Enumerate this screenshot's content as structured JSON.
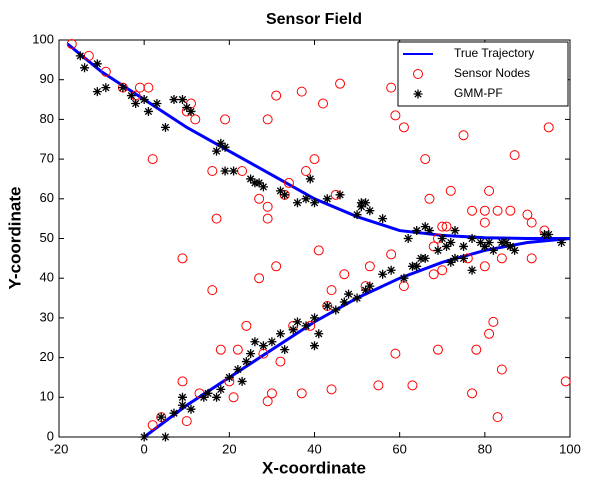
{
  "chart_data": {
    "type": "scatter",
    "title": "Sensor Field",
    "x_label": "X-coordinate",
    "y_label": "Y-coordinate",
    "xlim": [
      -20,
      100
    ],
    "ylim": [
      0,
      100
    ],
    "xticks": [
      -20,
      0,
      20,
      40,
      60,
      80,
      100
    ],
    "yticks": [
      0,
      10,
      20,
      30,
      40,
      50,
      60,
      70,
      80,
      90,
      100
    ],
    "legend": "northeast",
    "series": [
      {
        "name": "True Trajectory",
        "type": "line",
        "color": "#0000ff",
        "x": [
          -18,
          -10,
          0,
          10,
          20,
          30,
          40,
          50,
          60,
          70,
          80,
          90,
          100,
          null,
          0,
          10,
          20,
          30,
          40,
          50,
          60,
          70,
          80,
          90,
          100
        ],
        "values": [
          99,
          92,
          85,
          78,
          72,
          66,
          60,
          55.5,
          52,
          50.8,
          50.2,
          50,
          50,
          null,
          0,
          8,
          15,
          22,
          29,
          35,
          40,
          44,
          47,
          49,
          50
        ]
      },
      {
        "name": "Sensor Nodes",
        "type": "circle",
        "color": "#ff0000",
        "x": [
          -17,
          -13,
          -9,
          -5,
          -2,
          -1,
          1,
          2,
          10,
          11,
          12,
          19,
          29,
          31,
          37,
          42,
          46,
          58,
          59,
          61,
          66,
          75,
          95,
          87,
          80,
          83,
          81,
          77,
          72,
          71,
          70,
          80,
          86,
          90,
          91,
          94,
          17,
          16,
          23,
          27,
          29,
          29,
          34,
          38,
          40,
          45,
          41,
          31,
          27,
          33,
          9,
          16,
          18,
          22,
          24,
          28,
          32,
          35,
          39,
          43,
          44,
          47,
          52,
          53,
          58,
          61,
          69,
          68,
          70,
          76,
          80,
          84,
          91,
          99,
          84,
          82,
          81,
          78,
          69,
          63,
          59,
          55,
          44,
          37,
          30,
          29,
          20,
          21,
          13,
          10,
          9,
          4,
          2,
          83,
          77,
          68,
          67
        ],
        "values": [
          99,
          96,
          92,
          88,
          86,
          88,
          88,
          70,
          82,
          84,
          80,
          80,
          80,
          86,
          87,
          84,
          89,
          88,
          81,
          78,
          70,
          76,
          78,
          71,
          54,
          57,
          62,
          57,
          62,
          53,
          53,
          57,
          57,
          56,
          54,
          52,
          55,
          67,
          67,
          60,
          55,
          58,
          64,
          67,
          70,
          61,
          47,
          43,
          40,
          61,
          45,
          37,
          22,
          22,
          28,
          21,
          19,
          28,
          28,
          33,
          37,
          41,
          38,
          43,
          46,
          38,
          50,
          41,
          42,
          45,
          43,
          45,
          45,
          14,
          17,
          29,
          26,
          22,
          22,
          13,
          21,
          13,
          12,
          11,
          11,
          9,
          14,
          10,
          11,
          4,
          14,
          5,
          3,
          5,
          11,
          48,
          60
        ]
      },
      {
        "name": "GMM-PF",
        "type": "asterisk",
        "color": "#000000",
        "x": [
          -15,
          -14,
          -11,
          -11,
          -9,
          -5,
          -3,
          -2,
          0,
          1,
          3,
          5,
          7,
          9,
          10,
          11,
          17,
          18,
          19,
          19,
          21,
          25,
          26,
          27,
          28,
          32,
          33,
          36,
          38,
          39,
          40,
          43,
          46,
          50,
          51,
          51,
          52,
          53,
          56,
          62,
          64,
          66,
          67,
          70,
          71,
          72,
          73,
          75,
          77,
          79,
          80,
          81,
          84,
          86,
          94,
          95,
          98,
          0,
          5,
          4,
          7,
          9,
          9,
          11,
          14,
          15,
          17,
          18,
          20,
          22,
          23,
          24,
          25,
          26,
          28,
          30,
          32,
          33,
          35,
          36,
          38,
          40,
          40,
          41,
          43,
          45,
          47,
          48,
          50,
          52,
          53,
          56,
          58,
          61,
          63,
          64,
          65,
          66,
          69,
          72,
          73,
          75,
          77,
          80,
          82,
          85,
          86,
          87
        ],
        "values": [
          96,
          93,
          94,
          87,
          88,
          88,
          86,
          84,
          85,
          82,
          84,
          78,
          85,
          85,
          83,
          82,
          72,
          74,
          73,
          67,
          67,
          65,
          64,
          64,
          63,
          62,
          61,
          59,
          60,
          65,
          59,
          60,
          61,
          56,
          59,
          58,
          59,
          57,
          55,
          50,
          52,
          53,
          52,
          50,
          48,
          49,
          52,
          48,
          50,
          49,
          48,
          49,
          49,
          48,
          51,
          51,
          49,
          0,
          0,
          5,
          6,
          10,
          8,
          7,
          10,
          11,
          10,
          12,
          15,
          17,
          14,
          19,
          21,
          24,
          23,
          24,
          26,
          22,
          27,
          29,
          28,
          30,
          23,
          26,
          33,
          32,
          34,
          36,
          35,
          37,
          38,
          41,
          42,
          40,
          43,
          43,
          45,
          45,
          47,
          44,
          45,
          45,
          42,
          48,
          47,
          49,
          48,
          47
        ]
      }
    ]
  }
}
